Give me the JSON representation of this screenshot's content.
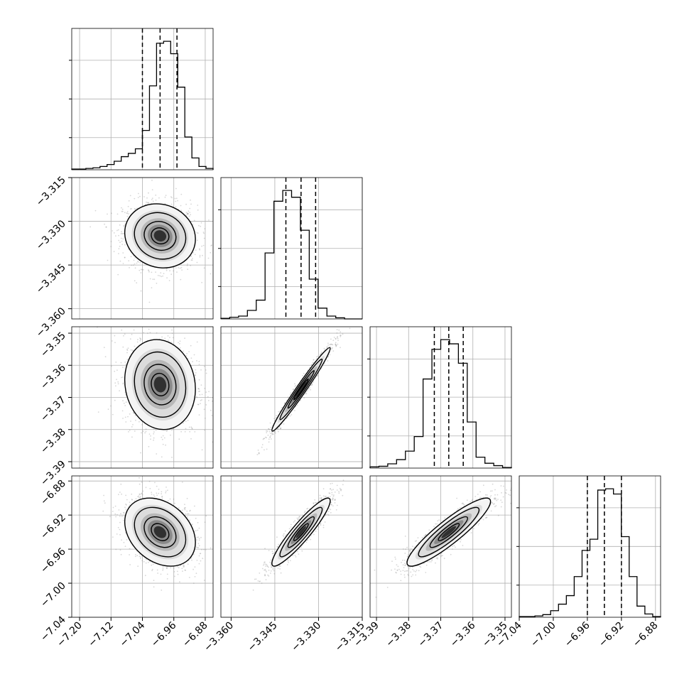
{
  "figure": {
    "type": "corner-plot",
    "n_params": 4,
    "grid": true
  },
  "colors": {
    "line": "#000000",
    "grid": "#b0b0b0",
    "scatter": "#8c8c8c",
    "background": "#ffffff"
  },
  "chart_data": {
    "type": "corner",
    "parameters": [
      {
        "index": 0,
        "range": [
          -7.22,
          -6.86
        ],
        "ticks": [
          -7.2,
          -7.12,
          -7.04,
          -6.96,
          -6.88
        ],
        "tick_labels": [
          "−7.20",
          "−7.12",
          "−7.04",
          "−6.96",
          "−6.88"
        ],
        "quantiles": [
          -7.04,
          -6.995,
          -6.952
        ]
      },
      {
        "index": 1,
        "range": [
          -3.3635,
          -3.315
        ],
        "ticks": [
          -3.36,
          -3.345,
          -3.33,
          -3.315
        ],
        "tick_labels": [
          "−3.360",
          "−3.345",
          "−3.330",
          "−3.315"
        ],
        "quantiles": [
          -3.3412,
          -3.336,
          -3.331
        ]
      },
      {
        "index": 2,
        "range": [
          -3.392,
          -3.348
        ],
        "ticks": [
          -3.39,
          -3.38,
          -3.37,
          -3.36,
          -3.35
        ],
        "tick_labels": [
          "−3.39",
          "−3.38",
          "−3.37",
          "−3.36",
          "−3.35"
        ],
        "quantiles": [
          -3.372,
          -3.3675,
          -3.363
        ]
      },
      {
        "index": 3,
        "range": [
          -7.04,
          -6.874
        ],
        "ticks": [
          -7.04,
          -7.0,
          -6.96,
          -6.92,
          -6.88
        ],
        "tick_labels": [
          "−7.04",
          "−7.00",
          "−6.96",
          "−6.92",
          "−6.88"
        ],
        "quantiles": [
          -6.96,
          -6.94,
          -6.92
        ]
      }
    ],
    "histograms": [
      {
        "param": 0,
        "counts": [
          1,
          1,
          2,
          3,
          5,
          8,
          13,
          20,
          25,
          32,
          60,
          128,
          193,
          196,
          177,
          126,
          50,
          18,
          5,
          2
        ]
      },
      {
        "param": 1,
        "counts": [
          1,
          3,
          5,
          15,
          33,
          116,
          207,
          226,
          214,
          156,
          70,
          19,
          5,
          2,
          0,
          0
        ]
      },
      {
        "param": 2,
        "counts": [
          2,
          3,
          7,
          14,
          28,
          52,
          147,
          196,
          212,
          205,
          173,
          76,
          18,
          8,
          4,
          1
        ]
      },
      {
        "param": 3,
        "counts": [
          1,
          1,
          2,
          4,
          10,
          20,
          33,
          62,
          102,
          119,
          194,
          196,
          188,
          123,
          62,
          17,
          5,
          1
        ]
      }
    ],
    "pairs": [
      {
        "x": 0,
        "y": 1,
        "center": [
          -6.995,
          -3.335
        ],
        "sd": [
          0.045,
          0.0055
        ],
        "corr": -0.1
      },
      {
        "x": 0,
        "y": 2,
        "center": [
          -6.995,
          -3.366
        ],
        "sd": [
          0.045,
          0.007
        ],
        "corr": -0.1
      },
      {
        "x": 1,
        "y": 2,
        "center": [
          -3.336,
          -3.3675
        ],
        "sd": [
          0.005,
          0.0065
        ],
        "corr": 0.98
      },
      {
        "x": 0,
        "y": 3,
        "center": [
          -6.995,
          -6.94
        ],
        "sd": [
          0.045,
          0.02
        ],
        "corr": -0.3
      },
      {
        "x": 1,
        "y": 3,
        "center": [
          -3.336,
          -6.94
        ],
        "sd": [
          0.005,
          0.02
        ],
        "corr": 0.92
      },
      {
        "x": 2,
        "y": 3,
        "center": [
          -3.3675,
          -6.94
        ],
        "sd": [
          0.0065,
          0.02
        ],
        "corr": 0.9
      }
    ]
  }
}
